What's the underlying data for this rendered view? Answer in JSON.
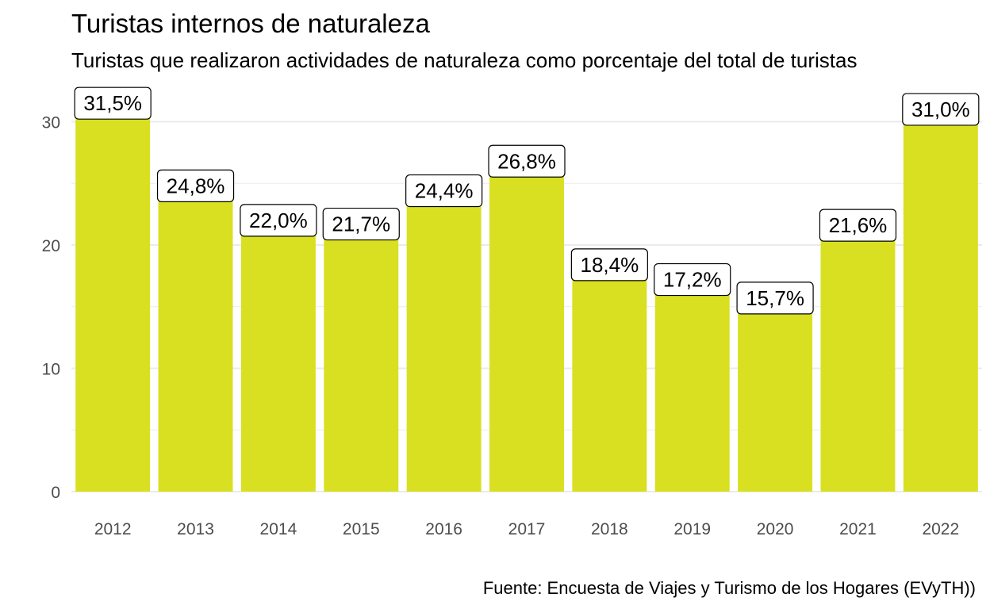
{
  "title": "Turistas internos de naturaleza",
  "subtitle": "Turistas que realizaron actividades de naturaleza como porcentaje del total de turistas",
  "caption": "Fuente: Encuesta de Viajes y Turismo de los Hogares (EVyTH))",
  "colors": {
    "bar": "#d8e021",
    "grid": "#ebebeb",
    "label_border": "#000000"
  },
  "chart_data": {
    "type": "bar",
    "categories": [
      "2012",
      "2013",
      "2014",
      "2015",
      "2016",
      "2017",
      "2018",
      "2019",
      "2020",
      "2021",
      "2022"
    ],
    "values": [
      31.5,
      24.8,
      22.0,
      21.7,
      24.4,
      26.8,
      18.4,
      17.2,
      15.7,
      21.6,
      31.0
    ],
    "data_labels": [
      "31,5%",
      "24,8%",
      "22,0%",
      "21,7%",
      "24,4%",
      "26,8%",
      "18,4%",
      "17,2%",
      "15,7%",
      "21,6%",
      "31,0%"
    ],
    "yticks": [
      "0",
      "10",
      "20",
      "30"
    ],
    "ylim": [
      0,
      33
    ],
    "xlabel": "",
    "ylabel": "",
    "grid": true,
    "legend": "none"
  }
}
